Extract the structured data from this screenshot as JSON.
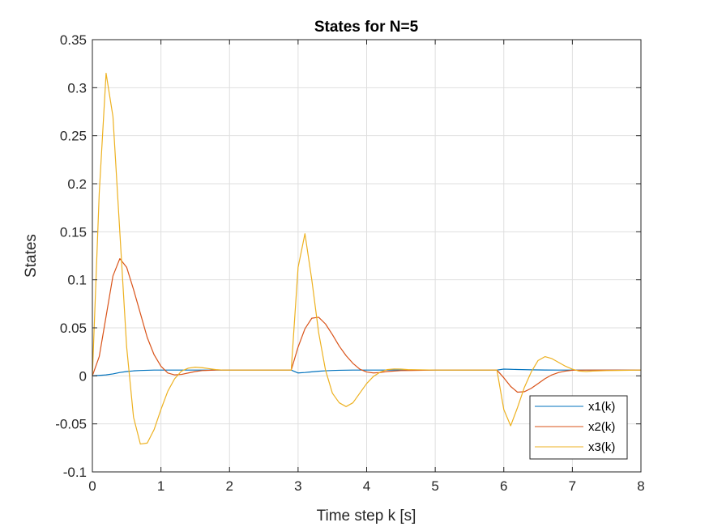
{
  "chart_data": {
    "type": "line",
    "title": "States for N=5",
    "xlabel": "Time step k [s]",
    "ylabel": "States",
    "xlim": [
      0,
      8
    ],
    "ylim": [
      -0.1,
      0.35
    ],
    "xticks": [
      0,
      1,
      2,
      3,
      4,
      5,
      6,
      7,
      8
    ],
    "xtick_labels": [
      "0",
      "1",
      "2",
      "3",
      "4",
      "5",
      "6",
      "7",
      "8"
    ],
    "yticks": [
      -0.1,
      -0.05,
      0,
      0.05,
      0.1,
      0.15,
      0.2,
      0.25,
      0.3,
      0.35
    ],
    "ytick_labels": [
      "-0.1",
      "-0.05",
      "0",
      "0.05",
      "0.1",
      "0.15",
      "0.2",
      "0.25",
      "0.3",
      "0.35"
    ],
    "grid": true,
    "legend_position": "bottom-right",
    "series": [
      {
        "name": "x1(k)",
        "color": "#0072BD",
        "x": [
          0,
          0.1,
          0.2,
          0.3,
          0.4,
          0.5,
          0.6,
          0.7,
          0.8,
          0.9,
          1,
          1.5,
          2,
          2.5,
          2.9,
          3,
          3.1,
          3.2,
          3.3,
          3.4,
          3.5,
          3.6,
          3.7,
          3.8,
          4,
          4.5,
          5,
          5.5,
          5.9,
          6,
          6.1,
          6.2,
          6.4,
          6.6,
          6.8,
          7,
          7.5,
          8
        ],
        "values": [
          0,
          0.0005,
          0.001,
          0.002,
          0.0035,
          0.0045,
          0.0052,
          0.0056,
          0.0058,
          0.006,
          0.006,
          0.006,
          0.006,
          0.006,
          0.006,
          0.003,
          0.0035,
          0.0042,
          0.0048,
          0.0053,
          0.0056,
          0.0058,
          0.0059,
          0.006,
          0.006,
          0.006,
          0.006,
          0.006,
          0.006,
          0.007,
          0.0068,
          0.0066,
          0.0063,
          0.0061,
          0.006,
          0.006,
          0.006,
          0.006
        ]
      },
      {
        "name": "x2(k)",
        "color": "#D95319",
        "x": [
          0,
          0.1,
          0.2,
          0.3,
          0.4,
          0.5,
          0.6,
          0.7,
          0.8,
          0.9,
          1,
          1.1,
          1.2,
          1.3,
          1.4,
          1.5,
          1.6,
          1.8,
          2,
          2.5,
          2.9,
          3,
          3.1,
          3.2,
          3.3,
          3.4,
          3.5,
          3.6,
          3.7,
          3.8,
          3.9,
          4,
          4.1,
          4.2,
          4.3,
          4.5,
          5,
          5.5,
          5.9,
          6,
          6.1,
          6.2,
          6.3,
          6.4,
          6.5,
          6.6,
          6.7,
          6.8,
          6.9,
          7,
          7.2,
          7.5,
          8
        ],
        "values": [
          0,
          0.02,
          0.062,
          0.104,
          0.122,
          0.113,
          0.09,
          0.065,
          0.04,
          0.022,
          0.01,
          0.003,
          0.001,
          0.0015,
          0.003,
          0.0045,
          0.0055,
          0.006,
          0.006,
          0.006,
          0.006,
          0.03,
          0.049,
          0.06,
          0.061,
          0.054,
          0.043,
          0.031,
          0.021,
          0.013,
          0.007,
          0.004,
          0.003,
          0.0035,
          0.0045,
          0.0055,
          0.006,
          0.006,
          0.006,
          -0.002,
          -0.011,
          -0.017,
          -0.0165,
          -0.013,
          -0.008,
          -0.003,
          0.001,
          0.0035,
          0.005,
          0.0058,
          0.006,
          0.006,
          0.006
        ]
      },
      {
        "name": "x3(k)",
        "color": "#EDB120",
        "x": [
          0,
          0.1,
          0.2,
          0.3,
          0.4,
          0.5,
          0.6,
          0.7,
          0.8,
          0.9,
          1,
          1.1,
          1.2,
          1.3,
          1.4,
          1.5,
          1.6,
          1.7,
          1.8,
          1.9,
          2,
          2.5,
          2.9,
          3,
          3.1,
          3.2,
          3.3,
          3.4,
          3.5,
          3.6,
          3.7,
          3.8,
          3.9,
          4,
          4.1,
          4.2,
          4.3,
          4.4,
          4.5,
          4.6,
          5,
          5.5,
          5.9,
          6,
          6.1,
          6.2,
          6.3,
          6.4,
          6.5,
          6.6,
          6.7,
          6.8,
          6.9,
          7,
          7.1,
          7.2,
          7.3,
          7.5,
          8
        ],
        "values": [
          0,
          0.19,
          0.315,
          0.27,
          0.15,
          0.03,
          -0.043,
          -0.071,
          -0.07,
          -0.056,
          -0.035,
          -0.016,
          -0.003,
          0.005,
          0.008,
          0.009,
          0.0085,
          0.0075,
          0.0065,
          0.006,
          0.006,
          0.006,
          0.006,
          0.113,
          0.148,
          0.1,
          0.045,
          0.006,
          -0.018,
          -0.028,
          -0.032,
          -0.028,
          -0.018,
          -0.008,
          -0.0005,
          0.004,
          0.0065,
          0.0072,
          0.007,
          0.0065,
          0.006,
          0.006,
          0.006,
          -0.035,
          -0.052,
          -0.033,
          -0.012,
          0.004,
          0.016,
          0.02,
          0.018,
          0.014,
          0.01,
          0.007,
          0.005,
          0.0045,
          0.005,
          0.0055,
          0.006
        ]
      }
    ]
  }
}
